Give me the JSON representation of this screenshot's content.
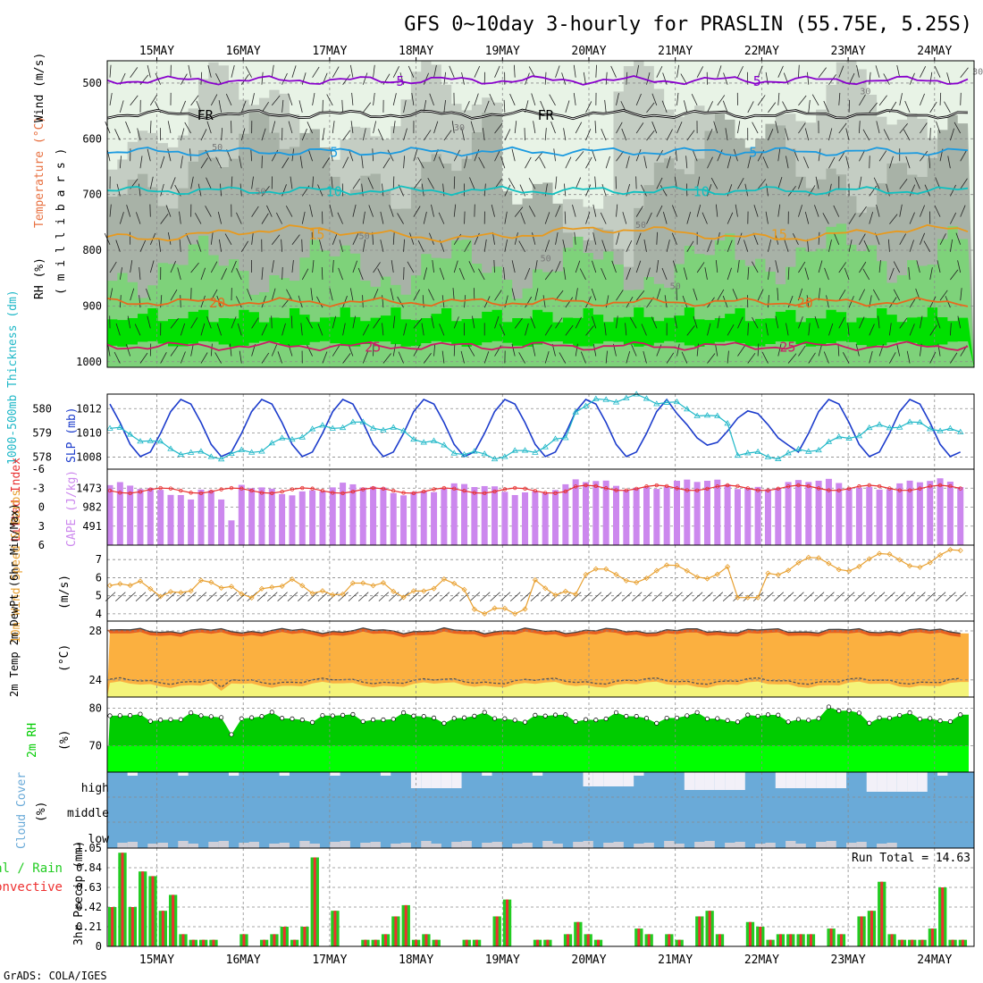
{
  "title": "GFS 0~10day 3-hourly for PRASLIN (55.75E, 5.25S)",
  "credit": "GrADS: COLA/IGES",
  "colors": {
    "rh_light": "#e8f3e6",
    "rh_mid": "#c4cdc3",
    "rh_dark": "#a8b2a7",
    "rh_green": "#7ed27a",
    "rh_bright": "#00e000",
    "temp_purple": "#8800cc",
    "temp_black": "#000000",
    "temp_blue": "#1a9ae0",
    "temp_cyan": "#10c0c0",
    "temp_orange": "#e89a1e",
    "temp_orange2": "#e86a1e",
    "temp_magenta": "#cc1a66",
    "slp": "#1c3ccc",
    "thickness": "#20b8c8",
    "cape_bar": "#cc88ee",
    "lifted": "#e83030",
    "wind_speed": "#e8a030",
    "temp_fill": "#fbb040",
    "temp_top": "#e86020",
    "dew_fill": "#f4f47a",
    "rh2m": "#00cc00",
    "rh2m_bright": "#00ff00",
    "cloud": "#6aaad8",
    "cloud_clear": "#f2f0f8",
    "precip_total": "#22cc22",
    "precip_conv": "#ee3030"
  },
  "chart_data": [
    {
      "type": "contour",
      "name": "upper-air",
      "ylabel_parts": [
        "RH (%)",
        "Temperature (°C)",
        "Wind (m/s)"
      ],
      "ylabel_right": "( m i l l i b a r s )",
      "y_ticks": [
        500,
        600,
        700,
        800,
        900,
        1000
      ],
      "ylim": [
        460,
        1010
      ],
      "dates_top": [
        "15MAY",
        "16MAY",
        "17MAY",
        "18MAY",
        "19MAY",
        "20MAY",
        "21MAY",
        "22MAY",
        "23MAY",
        "24MAY"
      ],
      "isotherms": [
        {
          "label": "-5",
          "level": 495,
          "labels_at": [
            2.77,
            6.9
          ]
        },
        {
          "label": "FR",
          "level": 556,
          "labels_at": [
            0.56,
            4.5
          ]
        },
        {
          "label": "5",
          "level": 623,
          "labels_at": [
            2.05,
            6.9
          ]
        },
        {
          "label": "10",
          "level": 693,
          "labels_at": [
            2.05,
            6.3
          ]
        },
        {
          "label": "15",
          "level": 770,
          "labels_at": [
            1.85,
            7.2
          ]
        },
        {
          "label": "20",
          "level": 893,
          "labels_at": [
            0.7,
            7.5
          ]
        },
        {
          "label": "25",
          "level": 972,
          "labels_at": [
            2.5,
            7.3
          ]
        }
      ],
      "rh_contour_labels": [
        "50",
        "50",
        "30",
        "50",
        "50",
        "50",
        "50",
        "30",
        "30"
      ]
    },
    {
      "type": "line",
      "name": "slp-thickness",
      "ylabel_left": "1000-500mb Thickness (dm)",
      "ylabel_right": "SLP (mb)",
      "left_ticks": [
        578,
        579,
        580
      ],
      "right_ticks": [
        1008,
        1010,
        1012
      ],
      "right_lim": [
        1007,
        1013.2
      ]
    },
    {
      "type": "bar",
      "name": "cape-lifted",
      "ylabel_left": "Lifted Index",
      "ylabel_right": "CAPE (J/kg)",
      "left_ticks": [
        "-6",
        "-3",
        "0",
        "3",
        "6"
      ],
      "right_ticks": [
        "1473",
        "982",
        "491"
      ],
      "cape_lim": [
        0,
        1964
      ],
      "lifted_lim": [
        6,
        -6
      ]
    },
    {
      "type": "line",
      "name": "wind10m",
      "ylabel_left": "10m Wind Speed & Barbs",
      "ylabel_right": "(m/s)",
      "y_ticks": [
        4,
        5,
        6,
        7
      ],
      "ylim": [
        3.6,
        7.8
      ]
    },
    {
      "type": "area",
      "name": "temp2m",
      "ylabel_left": "2m Temp 2m DewPt (6hr Min/Max)",
      "ylabel_right": "(°C)",
      "y_ticks": [
        24,
        28
      ],
      "ylim": [
        22.6,
        28.8
      ]
    },
    {
      "type": "area",
      "name": "rh2m",
      "ylabel_left": "2m RH",
      "ylabel_right": "(%)",
      "y_ticks": [
        70,
        80
      ],
      "ylim": [
        63,
        83
      ]
    },
    {
      "type": "area",
      "name": "cloud",
      "ylabel_left": "Cloud Cover",
      "ylabel_right": "(%)",
      "layer_labels": [
        "high",
        "middle",
        "low"
      ]
    },
    {
      "type": "bar",
      "name": "precip",
      "ylabel_left": "Total / Rain",
      "ylabel_left2": "Convective",
      "ylabel_right": "3hr Precip (mm)",
      "y_ticks": [
        "0",
        "0.21",
        "0.42",
        "0.63",
        "0.84",
        "1.05"
      ],
      "ylim": [
        0,
        1.05
      ],
      "run_total_label": "Run Total = 14.63",
      "values": [
        0.42,
        1.0,
        0.42,
        0.8,
        0.75,
        0.38,
        0.55,
        0.13,
        0.07,
        0.07,
        0.07,
        0,
        0,
        0.13,
        0,
        0.07,
        0.13,
        0.21,
        0.07,
        0.21,
        0.95,
        0,
        0.38,
        0,
        0,
        0.07,
        0.07,
        0.13,
        0.32,
        0.44,
        0.07,
        0.13,
        0.07,
        0,
        0,
        0.07,
        0.07,
        0,
        0.32,
        0.5,
        0,
        0,
        0.07,
        0.07,
        0,
        0.13,
        0.26,
        0.13,
        0.07,
        0,
        0,
        0,
        0.19,
        0.13,
        0,
        0.13,
        0.07,
        0,
        0.32,
        0.38,
        0.13,
        0,
        0,
        0.26,
        0.21,
        0.07,
        0.13,
        0.13,
        0.13,
        0.13,
        0,
        0.19,
        0.13,
        0,
        0.32,
        0.38,
        0.69,
        0.13,
        0.07,
        0.07,
        0.07,
        0.19,
        0.63,
        0.07,
        0.07
      ],
      "dates_bottom": [
        "15MAY",
        "16MAY",
        "17MAY",
        "18MAY",
        "19MAY",
        "20MAY",
        "21MAY",
        "22MAY",
        "23MAY",
        "24MAY"
      ]
    }
  ]
}
